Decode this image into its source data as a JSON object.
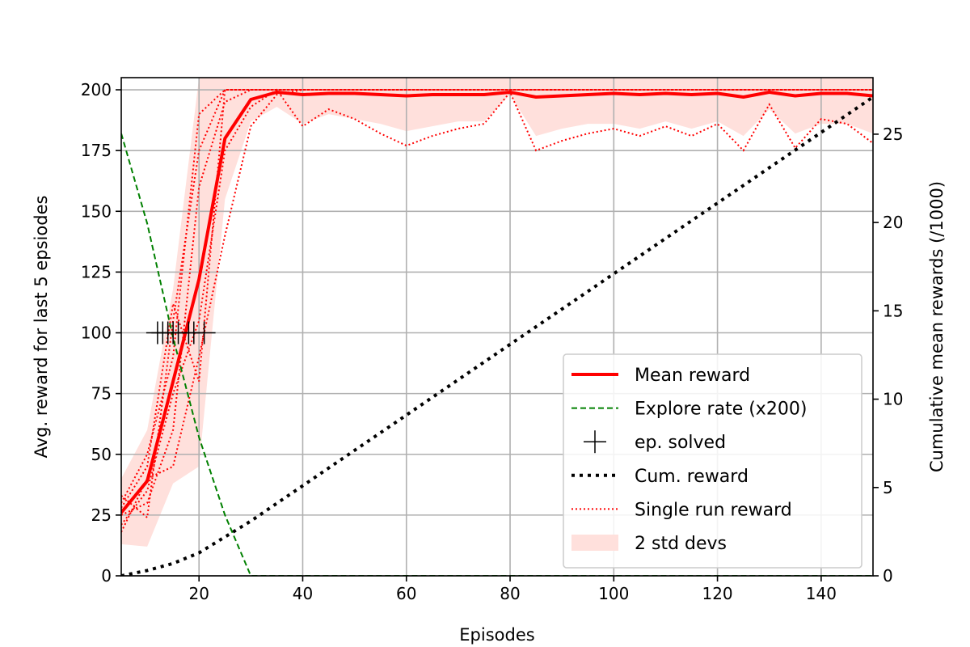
{
  "chart_data": {
    "type": "line",
    "xlabel": "Episodes",
    "ylabel": "Avg. reward for last 5 epsiodes",
    "y2label": "Cumulative mean rewards (/1000)",
    "xlim": [
      5,
      150
    ],
    "ylim": [
      0,
      205
    ],
    "y2lim": [
      0,
      28.2
    ],
    "grid": true,
    "legend_position": "lower-right",
    "x_ticks": [
      20,
      40,
      60,
      80,
      100,
      120,
      140
    ],
    "y_ticks": [
      0,
      25,
      50,
      75,
      100,
      125,
      150,
      175,
      200
    ],
    "y2_ticks": [
      0,
      5,
      10,
      15,
      20,
      25
    ],
    "colors": {
      "mean": "#ff0000",
      "explore": "#008000",
      "solved": "#000000",
      "cum": "#000000",
      "single": "#ff0000",
      "band": "#ffe0dc"
    },
    "legend": [
      {
        "key": "mean",
        "label": "Mean reward",
        "style": "solid"
      },
      {
        "key": "explore",
        "label": "Explore rate (x200)",
        "style": "dashed"
      },
      {
        "key": "solved",
        "label": "ep. solved",
        "style": "marker-plus"
      },
      {
        "key": "cum",
        "label": "Cum. reward",
        "style": "dotted-thick"
      },
      {
        "key": "single",
        "label": "Single run reward",
        "style": "dotted"
      },
      {
        "key": "band",
        "label": "2 std devs",
        "style": "patch"
      }
    ],
    "mean_reward": {
      "x": [
        5,
        10,
        15,
        20,
        25,
        30,
        35,
        40,
        45,
        50,
        55,
        60,
        65,
        70,
        75,
        80,
        85,
        90,
        95,
        100,
        105,
        110,
        115,
        120,
        125,
        130,
        135,
        140,
        145,
        150
      ],
      "y": [
        26,
        39,
        80,
        122,
        180,
        196,
        199,
        198,
        198.5,
        198.5,
        198,
        197.5,
        198,
        198,
        198,
        199,
        197,
        197.5,
        198,
        198.5,
        198,
        198.5,
        198,
        198.5,
        197,
        199,
        197.5,
        198.5,
        198.5,
        197.5
      ]
    },
    "std_band": {
      "x": [
        5,
        10,
        15,
        20,
        25,
        30,
        35,
        40,
        45,
        50,
        55,
        60,
        65,
        70,
        75,
        80,
        85,
        90,
        95,
        100,
        105,
        110,
        115,
        120,
        125,
        130,
        135,
        140,
        145,
        150
      ],
      "upper": [
        40,
        60,
        118,
        205,
        205,
        205,
        205,
        205,
        205,
        205,
        205,
        205,
        205,
        205,
        205,
        205,
        205,
        205,
        205,
        205,
        205,
        205,
        205,
        205,
        205,
        205,
        205,
        205,
        205,
        205
      ],
      "lower": [
        13,
        12,
        38,
        45,
        155,
        187,
        193,
        186,
        190,
        188,
        186,
        183,
        185,
        187,
        187,
        198,
        181,
        184,
        186,
        186,
        184,
        187,
        184,
        187,
        181,
        192,
        182,
        186,
        186,
        182
      ]
    },
    "single_runs": [
      {
        "x": [
          5,
          10,
          15,
          20,
          25,
          30,
          35,
          40,
          45,
          50,
          55,
          60,
          65,
          70,
          75,
          80,
          85,
          90,
          95,
          100,
          105,
          110,
          115,
          120,
          125,
          130,
          135,
          140,
          145,
          150
        ],
        "y": [
          21,
          35,
          75,
          105,
          175,
          193,
          200,
          185,
          192,
          188,
          182,
          177,
          181,
          184,
          186,
          199,
          175,
          179,
          182,
          184,
          181,
          185,
          181,
          186,
          175,
          194,
          176,
          188,
          186,
          178
        ]
      },
      {
        "x": [
          5,
          10,
          15,
          20,
          25,
          30,
          35,
          40,
          45,
          50,
          55,
          60,
          65,
          70,
          75,
          80,
          85,
          90,
          95,
          100,
          105,
          110,
          115,
          120,
          125,
          130,
          135,
          140,
          145,
          150
        ],
        "y": [
          33,
          24,
          105,
          175,
          200,
          200,
          200,
          200,
          200,
          200,
          200,
          200,
          200,
          200,
          200,
          200,
          200,
          200,
          200,
          200,
          200,
          200,
          200,
          200,
          200,
          200,
          200,
          200,
          200,
          200
        ]
      },
      {
        "x": [
          5,
          10,
          15,
          20,
          25,
          30,
          35,
          40,
          45,
          50,
          55,
          60,
          65,
          70,
          75,
          80,
          85,
          90,
          95,
          100,
          105,
          110,
          115,
          120,
          125,
          130,
          135,
          140,
          145,
          150
        ],
        "y": [
          25,
          30,
          60,
          160,
          195,
          200,
          200,
          200,
          200,
          200,
          200,
          200,
          200,
          200,
          200,
          200,
          200,
          200,
          200,
          200,
          200,
          200,
          200,
          200,
          200,
          200,
          200,
          200,
          200,
          200
        ]
      },
      {
        "x": [
          5,
          10,
          15,
          20,
          25,
          30,
          35,
          40,
          45,
          50,
          55,
          60,
          65,
          70,
          75,
          80,
          85,
          90,
          95,
          100,
          105,
          110,
          115,
          120,
          125,
          130,
          135,
          140,
          145,
          150
        ],
        "y": [
          18,
          40,
          45,
          90,
          140,
          185,
          198,
          200,
          200,
          200,
          200,
          200,
          200,
          200,
          200,
          200,
          200,
          200,
          200,
          200,
          200,
          200,
          200,
          200,
          200,
          200,
          200,
          200,
          200,
          200
        ]
      },
      {
        "x": [
          5,
          10,
          15,
          20,
          25,
          30,
          35,
          40,
          45,
          50,
          55,
          60,
          65,
          70,
          75,
          80,
          85,
          90,
          95,
          100,
          105,
          110,
          115,
          120,
          125,
          130,
          135,
          140,
          145,
          150
        ],
        "y": [
          28,
          45,
          112,
          80,
          200,
          200,
          200,
          200,
          200,
          200,
          200,
          200,
          200,
          200,
          200,
          200,
          200,
          200,
          200,
          200,
          200,
          200,
          200,
          200,
          200,
          200,
          200,
          200,
          200,
          200
        ]
      },
      {
        "x": [
          5,
          10,
          15,
          20,
          25,
          30,
          35,
          40,
          45,
          50,
          55,
          60,
          65,
          70,
          75,
          80,
          85,
          90,
          95,
          100,
          105,
          110,
          115,
          120,
          125,
          130,
          135,
          140,
          145,
          150
        ],
        "y": [
          30,
          50,
          90,
          190,
          200,
          200,
          200,
          200,
          200,
          200,
          200,
          200,
          200,
          200,
          200,
          200,
          200,
          200,
          200,
          200,
          200,
          200,
          200,
          200,
          200,
          200,
          200,
          200,
          200,
          200
        ]
      }
    ],
    "explore_rate": {
      "x": [
        5,
        10,
        15,
        20,
        25,
        30,
        150
      ],
      "y": [
        182,
        145,
        98,
        57,
        25,
        0,
        0
      ]
    },
    "cum_reward": {
      "x": [
        5,
        10,
        15,
        20,
        25,
        30,
        35,
        40,
        50,
        60,
        70,
        80,
        90,
        100,
        110,
        120,
        130,
        140,
        150
      ],
      "y2": [
        0,
        0.3,
        0.7,
        1.3,
        2.2,
        3.1,
        4.1,
        5.1,
        7.1,
        9.1,
        11.1,
        13.1,
        15.1,
        17.1,
        19.1,
        21.1,
        23.1,
        25.1,
        27.1
      ]
    },
    "solved_markers": {
      "x": [
        12,
        13,
        14,
        15,
        16,
        18,
        19,
        21
      ],
      "y": [
        100,
        100,
        100,
        100,
        100,
        100,
        100,
        100
      ]
    }
  }
}
